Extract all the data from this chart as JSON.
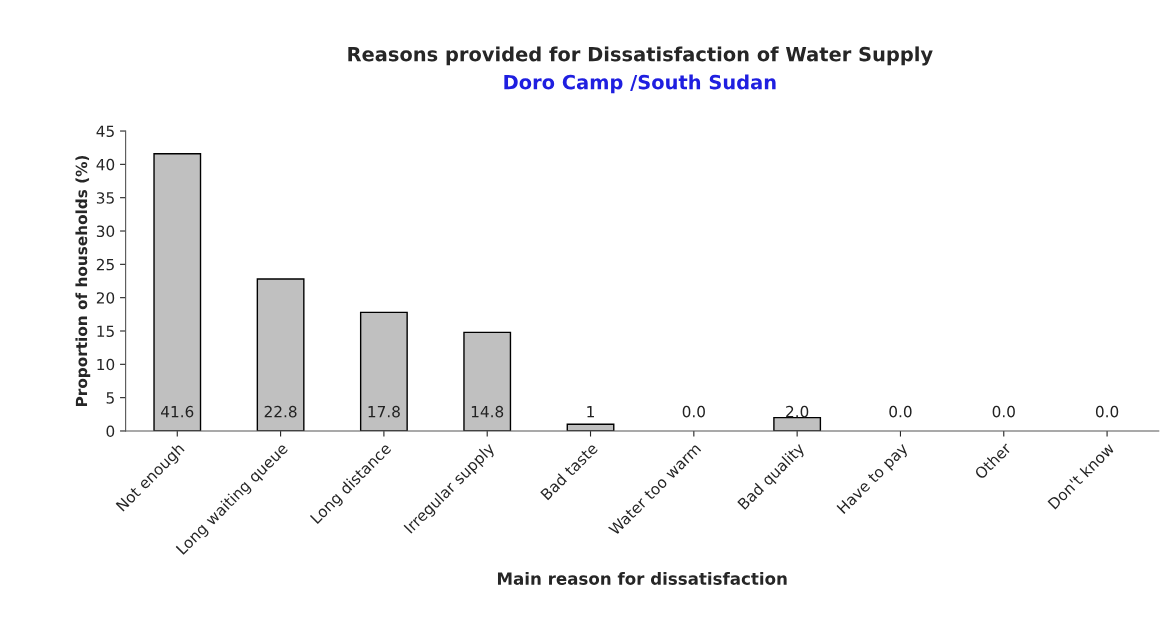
{
  "chart_data": {
    "type": "bar",
    "title": "Reasons provided for Dissatisfaction of Water Supply",
    "subtitle": "Doro Camp /South Sudan",
    "xlabel": "Main reason for dissatisfaction",
    "ylabel": "Proportion of households (%)",
    "categories": [
      "Not enough",
      "Long waiting queue",
      "Long distance",
      "Irregular supply",
      "Bad taste",
      "Water too warm",
      "Bad quality",
      "Have to pay",
      "Other",
      "Don't know"
    ],
    "values": [
      41.6,
      22.8,
      17.8,
      14.8,
      1,
      0,
      2,
      0,
      0,
      0
    ],
    "value_labels": [
      "41.6",
      "22.8",
      "17.8",
      "14.8",
      "1",
      "0.0",
      "2.0",
      "0.0",
      "0.0",
      "0.0"
    ],
    "color": "#c0c0c0",
    "ylim": [
      0,
      45
    ],
    "yticks": [
      0,
      5,
      10,
      15,
      20,
      25,
      30,
      35,
      40,
      45
    ],
    "grid": false,
    "legend": false
  }
}
